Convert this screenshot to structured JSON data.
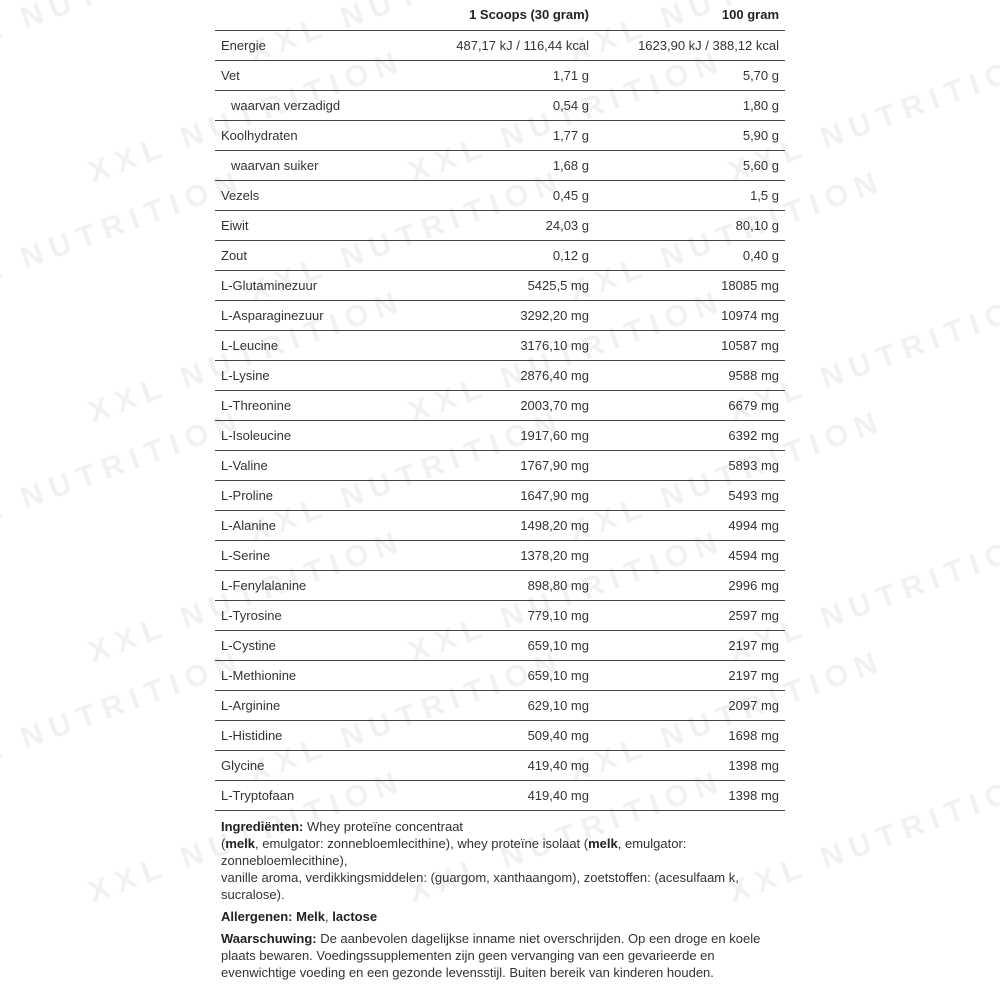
{
  "table": {
    "headers": [
      "",
      "1 Scoops (30 gram)",
      "100 gram"
    ],
    "rows": [
      {
        "label": "Energie",
        "serving": "487,17 kJ / 116,44 kcal",
        "per100": "1623,90 kJ / 388,12 kcal"
      },
      {
        "label": "Vet",
        "serving": "1,71 g",
        "per100": "5,70 g"
      },
      {
        "label": "waarvan verzadigd",
        "serving": "0,54 g",
        "per100": "1,80 g",
        "sub": true
      },
      {
        "label": "Koolhydraten",
        "serving": "1,77 g",
        "per100": "5,90 g"
      },
      {
        "label": "waarvan suiker",
        "serving": "1,68 g",
        "per100": "5,60 g",
        "sub": true
      },
      {
        "label": "Vezels",
        "serving": "0,45 g",
        "per100": "1,5 g"
      },
      {
        "label": "Eiwit",
        "serving": "24,03 g",
        "per100": "80,10 g"
      },
      {
        "label": "Zout",
        "serving": "0,12 g",
        "per100": "0,40 g"
      },
      {
        "label": "L-Glutaminezuur",
        "serving": "5425,5 mg",
        "per100": "18085 mg"
      },
      {
        "label": "L-Asparaginezuur",
        "serving": "3292,20 mg",
        "per100": "10974 mg"
      },
      {
        "label": "L-Leucine",
        "serving": "3176,10 mg",
        "per100": "10587 mg"
      },
      {
        "label": "L-Lysine",
        "serving": "2876,40 mg",
        "per100": "9588 mg"
      },
      {
        "label": "L-Threonine",
        "serving": "2003,70 mg",
        "per100": "6679 mg"
      },
      {
        "label": "L-Isoleucine",
        "serving": "1917,60 mg",
        "per100": "6392 mg"
      },
      {
        "label": "L-Valine",
        "serving": "1767,90 mg",
        "per100": "5893 mg"
      },
      {
        "label": "L-Proline",
        "serving": "1647,90 mg",
        "per100": "5493 mg"
      },
      {
        "label": "L-Alanine",
        "serving": "1498,20 mg",
        "per100": "4994 mg"
      },
      {
        "label": "L-Serine",
        "serving": "1378,20 mg",
        "per100": "4594 mg"
      },
      {
        "label": "L-Fenylalanine",
        "serving": "898,80 mg",
        "per100": "2996 mg"
      },
      {
        "label": "L-Tyrosine",
        "serving": "779,10 mg",
        "per100": "2597 mg"
      },
      {
        "label": "L-Cystine",
        "serving": "659,10 mg",
        "per100": "2197 mg"
      },
      {
        "label": "L-Methionine",
        "serving": "659,10 mg",
        "per100": "2197 mg"
      },
      {
        "label": "L-Arginine",
        "serving": "629,10 mg",
        "per100": "2097 mg"
      },
      {
        "label": "L-Histidine",
        "serving": "509,40 mg",
        "per100": "1698 mg"
      },
      {
        "label": "Glycine",
        "serving": "419,40 mg",
        "per100": "1398 mg"
      },
      {
        "label": "L-Tryptofaan",
        "serving": "419,40 mg",
        "per100": "1398 mg"
      }
    ]
  },
  "ingredients": [
    {
      "t": "Ingrediënten:",
      "b": true
    },
    {
      "t": " Whey proteïne concentraat"
    },
    {
      "br": true
    },
    {
      "t": "("
    },
    {
      "t": "melk",
      "b": true
    },
    {
      "t": ", emulgator: zonnebloemlecithine), whey proteïne isolaat ("
    },
    {
      "t": "melk",
      "b": true
    },
    {
      "t": ", emulgator: zonnebloemlecithine),"
    },
    {
      "br": true
    },
    {
      "t": "vanille aroma, verdikkingsmiddelen: (guargom, xanthaangom), zoetstoffen: (acesulfaam k, sucralose)."
    }
  ],
  "allergens": [
    {
      "t": "Allergenen: Melk",
      "b": true
    },
    {
      "t": ", "
    },
    {
      "t": "lactose",
      "b": true
    }
  ],
  "warning": [
    {
      "t": "Waarschuwing:",
      "b": true
    },
    {
      "t": " De aanbevolen dagelijkse inname niet overschrijden. Op een droge en koele plaats bewaren. Voedingssupplementen zijn geen vervanging van een gevarieerde en evenwichtige voeding en een gezonde levensstijl. Buiten bereik van kinderen houden."
    }
  ],
  "watermark": "XXL NUTRITION"
}
